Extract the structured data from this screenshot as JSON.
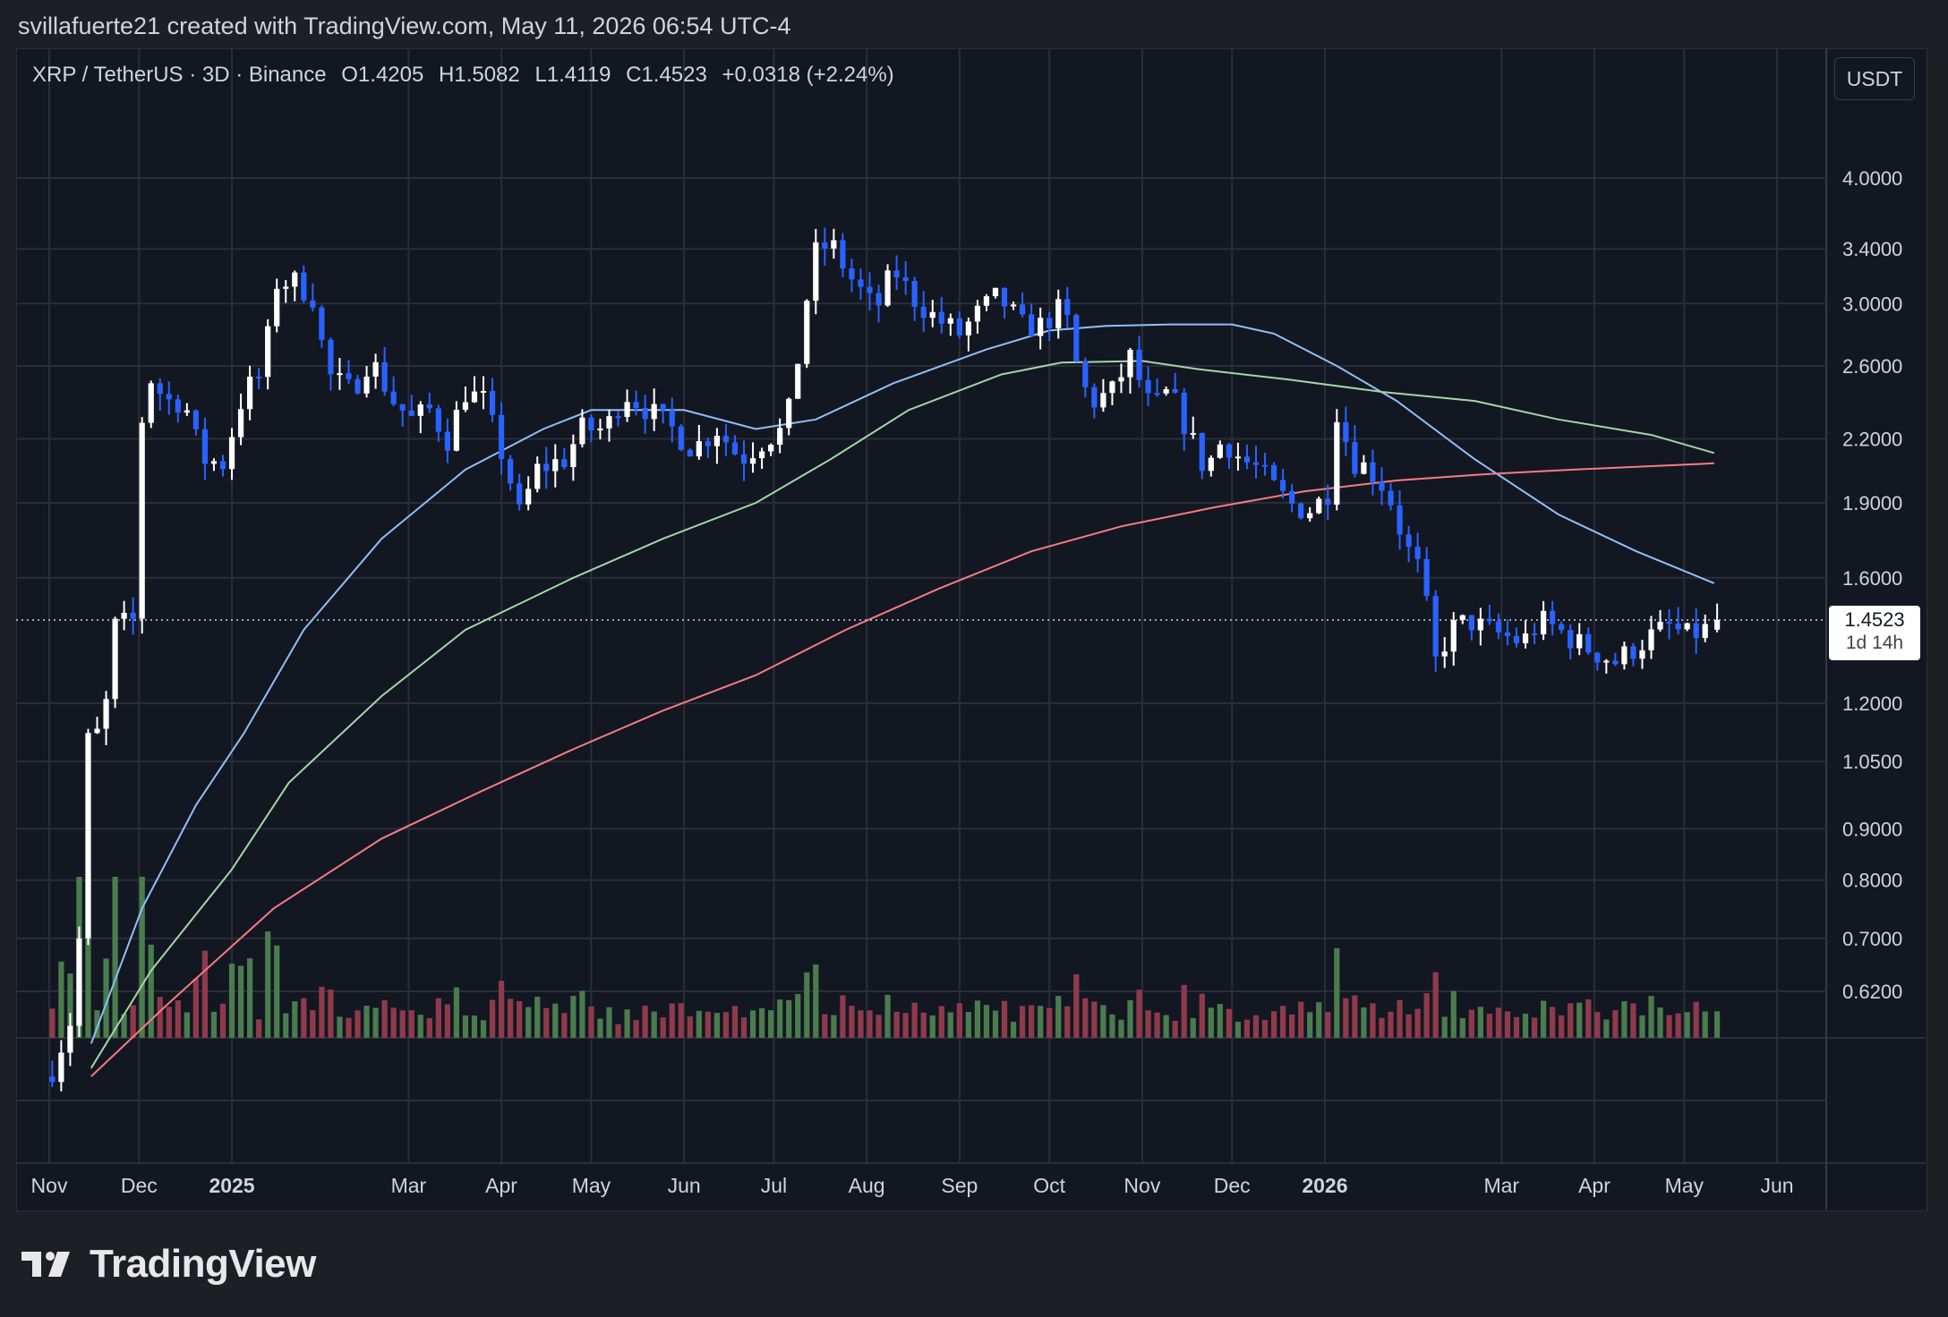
{
  "header": {
    "credit": "svillafuerte21 created with TradingView.com, May 11, 2026 06:54 UTC-4"
  },
  "legend": {
    "symbol": "XRP / TetherUS · 3D · Binance",
    "open": "O1.4205",
    "high": "H1.5082",
    "low": "L1.4119",
    "close": "C1.4523",
    "change": "+0.0318 (+2.24%)"
  },
  "toolbar": {
    "unit_label": "USDT"
  },
  "last_price": {
    "value": "1.4523",
    "countdown": "1d 14h"
  },
  "brand": {
    "name": "TradingView"
  },
  "colors": {
    "up": "#ffffff",
    "down": "#2962ff",
    "vol_up": "#4a7c4d",
    "vol_down": "#8f3a4b",
    "ma_blue": "#90bff9",
    "ma_green": "#a5d6a7",
    "ma_red": "#f77c80",
    "background": "#131722"
  },
  "chart_data": {
    "type": "candlestick",
    "title": "XRP / TetherUS · 3D · Binance",
    "yscale": "log",
    "ylim": [
      0.55,
      4.6
    ],
    "y_ticks": [
      "4.0000",
      "3.4000",
      "3.0000",
      "2.6000",
      "2.2000",
      "1.9000",
      "1.6000",
      "1.2000",
      "1.0500",
      "0.9000",
      "0.8000",
      "0.7000",
      "0.6200"
    ],
    "x_ticks": [
      {
        "label": "Nov",
        "date": "2024-11-01",
        "bold": false
      },
      {
        "label": "Dec",
        "date": "2024-12-01",
        "bold": false
      },
      {
        "label": "2025",
        "date": "2025-01-01",
        "bold": true
      },
      {
        "label": "Mar",
        "date": "2025-03-01",
        "bold": false
      },
      {
        "label": "Apr",
        "date": "2025-04-01",
        "bold": false
      },
      {
        "label": "May",
        "date": "2025-05-01",
        "bold": false
      },
      {
        "label": "Jun",
        "date": "2025-06-01",
        "bold": false
      },
      {
        "label": "Jul",
        "date": "2025-07-01",
        "bold": false
      },
      {
        "label": "Aug",
        "date": "2025-08-01",
        "bold": false
      },
      {
        "label": "Sep",
        "date": "2025-09-01",
        "bold": false
      },
      {
        "label": "Oct",
        "date": "2025-10-01",
        "bold": false
      },
      {
        "label": "Nov",
        "date": "2025-11-01",
        "bold": false
      },
      {
        "label": "Dec",
        "date": "2025-12-01",
        "bold": false
      },
      {
        "label": "2026",
        "date": "2026-01-01",
        "bold": true
      },
      {
        "label": "Mar",
        "date": "2026-03-01",
        "bold": false
      },
      {
        "label": "Apr",
        "date": "2026-04-01",
        "bold": false
      },
      {
        "label": "May",
        "date": "2026-05-01",
        "bold": false
      },
      {
        "label": "Jun",
        "date": "2026-06-01",
        "bold": false
      }
    ],
    "price_keyframes": [
      [
        "2024-11-01",
        0.51
      ],
      [
        "2024-11-10",
        0.6
      ],
      [
        "2024-11-14",
        1.1
      ],
      [
        "2024-11-19",
        1.13
      ],
      [
        "2024-11-23",
        1.43
      ],
      [
        "2024-11-29",
        1.45
      ],
      [
        "2024-12-02",
        2.3
      ],
      [
        "2024-12-04",
        2.55
      ],
      [
        "2024-12-10",
        2.4
      ],
      [
        "2024-12-16",
        2.4
      ],
      [
        "2024-12-22",
        2.1
      ],
      [
        "2024-12-29",
        2.08
      ],
      [
        "2025-01-05",
        2.45
      ],
      [
        "2025-01-11",
        2.55
      ],
      [
        "2025-01-16",
        3.15
      ],
      [
        "2025-01-22",
        3.15
      ],
      [
        "2025-01-28",
        3.05
      ],
      [
        "2025-02-02",
        2.55
      ],
      [
        "2025-02-10",
        2.45
      ],
      [
        "2025-02-16",
        2.65
      ],
      [
        "2025-02-24",
        2.4
      ],
      [
        "2025-03-02",
        2.3
      ],
      [
        "2025-03-08",
        2.35
      ],
      [
        "2025-03-14",
        2.2
      ],
      [
        "2025-03-20",
        2.45
      ],
      [
        "2025-03-26",
        2.4
      ],
      [
        "2025-04-03",
        2.05
      ],
      [
        "2025-04-07",
        1.85
      ],
      [
        "2025-04-13",
        2.05
      ],
      [
        "2025-04-22",
        2.1
      ],
      [
        "2025-04-28",
        2.25
      ],
      [
        "2025-05-06",
        2.25
      ],
      [
        "2025-05-12",
        2.45
      ],
      [
        "2025-05-20",
        2.35
      ],
      [
        "2025-05-28",
        2.25
      ],
      [
        "2025-06-04",
        2.15
      ],
      [
        "2025-06-12",
        2.25
      ],
      [
        "2025-06-20",
        2.1
      ],
      [
        "2025-06-28",
        2.2
      ],
      [
        "2025-07-05",
        2.25
      ],
      [
        "2025-07-10",
        2.75
      ],
      [
        "2025-07-14",
        3.35
      ],
      [
        "2025-07-20",
        3.45
      ],
      [
        "2025-07-26",
        3.2
      ],
      [
        "2025-08-04",
        2.95
      ],
      [
        "2025-08-10",
        3.25
      ],
      [
        "2025-08-16",
        3.05
      ],
      [
        "2025-08-24",
        2.9
      ],
      [
        "2025-09-01",
        2.8
      ],
      [
        "2025-09-08",
        2.95
      ],
      [
        "2025-09-14",
        3.05
      ],
      [
        "2025-09-22",
        2.85
      ],
      [
        "2025-09-28",
        2.85
      ],
      [
        "2025-10-04",
        2.95
      ],
      [
        "2025-10-08",
        2.85
      ],
      [
        "2025-10-11",
        2.5
      ],
      [
        "2025-10-16",
        2.4
      ],
      [
        "2025-10-22",
        2.45
      ],
      [
        "2025-10-28",
        2.65
      ],
      [
        "2025-11-04",
        2.35
      ],
      [
        "2025-11-10",
        2.45
      ],
      [
        "2025-11-16",
        2.25
      ],
      [
        "2025-11-22",
        2.05
      ],
      [
        "2025-11-28",
        2.2
      ],
      [
        "2025-12-04",
        2.1
      ],
      [
        "2025-12-10",
        2.05
      ],
      [
        "2025-12-16",
        1.95
      ],
      [
        "2025-12-22",
        1.88
      ],
      [
        "2025-12-28",
        1.87
      ],
      [
        "2026-01-02",
        1.95
      ],
      [
        "2026-01-05",
        2.35
      ],
      [
        "2026-01-10",
        2.1
      ],
      [
        "2026-01-16",
        2.05
      ],
      [
        "2026-01-22",
        1.95
      ],
      [
        "2026-01-28",
        1.72
      ],
      [
        "2026-02-03",
        1.6
      ],
      [
        "2026-02-06",
        1.3
      ],
      [
        "2026-02-12",
        1.42
      ],
      [
        "2026-02-18",
        1.45
      ],
      [
        "2026-02-24",
        1.42
      ],
      [
        "2026-03-02",
        1.4
      ],
      [
        "2026-03-08",
        1.38
      ],
      [
        "2026-03-14",
        1.45
      ],
      [
        "2026-03-20",
        1.42
      ],
      [
        "2026-03-26",
        1.38
      ],
      [
        "2026-04-01",
        1.35
      ],
      [
        "2026-04-08",
        1.32
      ],
      [
        "2026-04-14",
        1.36
      ],
      [
        "2026-04-20",
        1.4
      ],
      [
        "2026-04-26",
        1.43
      ],
      [
        "2026-05-02",
        1.4
      ],
      [
        "2026-05-08",
        1.42
      ],
      [
        "2026-05-11",
        1.4523
      ]
    ],
    "last_candle": {
      "open": 1.4205,
      "high": 1.5082,
      "low": 1.4119,
      "close": 1.4523
    },
    "moving_averages": [
      {
        "color": "#90bff9",
        "points": [
          [
            "2024-11-15",
            0.55
          ],
          [
            "2024-12-02",
            0.75
          ],
          [
            "2024-12-20",
            0.95
          ],
          [
            "2025-01-05",
            1.12
          ],
          [
            "2025-01-25",
            1.42
          ],
          [
            "2025-02-20",
            1.75
          ],
          [
            "2025-03-20",
            2.05
          ],
          [
            "2025-04-15",
            2.25
          ],
          [
            "2025-05-01",
            2.35
          ],
          [
            "2025-06-01",
            2.35
          ],
          [
            "2025-06-25",
            2.25
          ],
          [
            "2025-07-15",
            2.3
          ],
          [
            "2025-08-10",
            2.5
          ],
          [
            "2025-09-10",
            2.7
          ],
          [
            "2025-10-01",
            2.82
          ],
          [
            "2025-10-20",
            2.85
          ],
          [
            "2025-11-10",
            2.86
          ],
          [
            "2025-12-01",
            2.86
          ],
          [
            "2025-12-15",
            2.8
          ],
          [
            "2026-01-05",
            2.6
          ],
          [
            "2026-01-25",
            2.4
          ],
          [
            "2026-02-20",
            2.1
          ],
          [
            "2026-03-20",
            1.85
          ],
          [
            "2026-04-15",
            1.7
          ],
          [
            "2026-05-11",
            1.58
          ]
        ]
      },
      {
        "color": "#a5d6a7",
        "points": [
          [
            "2024-11-15",
            0.52
          ],
          [
            "2024-12-05",
            0.65
          ],
          [
            "2025-01-01",
            0.82
          ],
          [
            "2025-01-20",
            1.0
          ],
          [
            "2025-02-20",
            1.22
          ],
          [
            "2025-03-20",
            1.42
          ],
          [
            "2025-04-25",
            1.6
          ],
          [
            "2025-05-25",
            1.75
          ],
          [
            "2025-06-25",
            1.9
          ],
          [
            "2025-07-20",
            2.1
          ],
          [
            "2025-08-15",
            2.35
          ],
          [
            "2025-09-15",
            2.55
          ],
          [
            "2025-10-05",
            2.62
          ],
          [
            "2025-11-01",
            2.63
          ],
          [
            "2025-11-20",
            2.58
          ],
          [
            "2025-12-20",
            2.52
          ],
          [
            "2026-01-20",
            2.45
          ],
          [
            "2026-02-20",
            2.4
          ],
          [
            "2026-03-20",
            2.3
          ],
          [
            "2026-04-20",
            2.22
          ],
          [
            "2026-05-11",
            2.13
          ]
        ]
      },
      {
        "color": "#f77c80",
        "points": [
          [
            "2024-11-15",
            0.51
          ],
          [
            "2024-12-10",
            0.6
          ],
          [
            "2025-01-15",
            0.75
          ],
          [
            "2025-02-20",
            0.88
          ],
          [
            "2025-03-25",
            0.98
          ],
          [
            "2025-04-25",
            1.08
          ],
          [
            "2025-05-25",
            1.18
          ],
          [
            "2025-06-25",
            1.28
          ],
          [
            "2025-07-25",
            1.42
          ],
          [
            "2025-08-25",
            1.56
          ],
          [
            "2025-09-25",
            1.7
          ],
          [
            "2025-10-25",
            1.8
          ],
          [
            "2025-11-25",
            1.88
          ],
          [
            "2025-12-25",
            1.95
          ],
          [
            "2026-01-25",
            2.0
          ],
          [
            "2026-02-25",
            2.03
          ],
          [
            "2026-03-25",
            2.05
          ],
          [
            "2026-04-25",
            2.07
          ],
          [
            "2026-05-11",
            2.08
          ]
        ]
      }
    ],
    "volume": "relative bar heights, tall spikes in Nov-Dec 2024, small elsewhere"
  }
}
